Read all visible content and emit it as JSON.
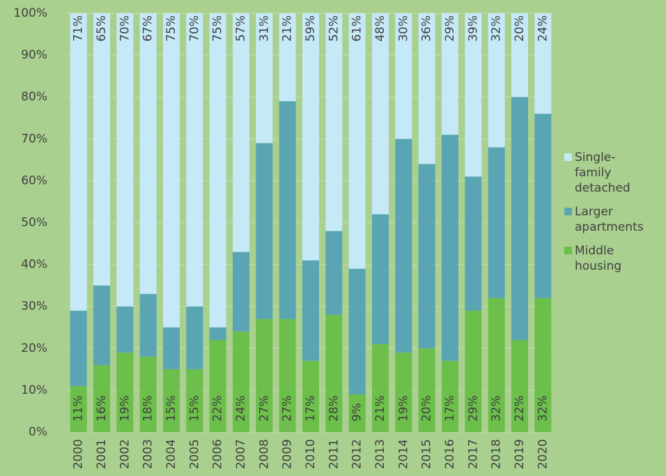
{
  "chart_data": {
    "type": "stacked_bar",
    "categories": [
      "2000",
      "2001",
      "2002",
      "2003",
      "2004",
      "2005",
      "2006",
      "2007",
      "2008",
      "2009",
      "2010",
      "2011",
      "2012",
      "2013",
      "2014",
      "2015",
      "2016",
      "2017",
      "2018",
      "2019",
      "2020"
    ],
    "series": [
      {
        "name": "Middle housing",
        "color": "#6cbf4a",
        "values": [
          11,
          16,
          19,
          18,
          15,
          15,
          22,
          24,
          27,
          27,
          17,
          28,
          9,
          21,
          19,
          20,
          17,
          29,
          32,
          22,
          32
        ],
        "value_labels": [
          "11%",
          "16%",
          "19%",
          "18%",
          "15%",
          "15%",
          "22%",
          "24%",
          "27%",
          "27%",
          "17%",
          "28%",
          "9%",
          "21%",
          "19%",
          "20%",
          "17%",
          "29%",
          "32%",
          "22%",
          "32%"
        ]
      },
      {
        "name": "Larger apartments",
        "color": "#5aa5b3",
        "values": [
          18,
          19,
          11,
          15,
          10,
          15,
          3,
          19,
          42,
          52,
          24,
          20,
          30,
          31,
          51,
          44,
          54,
          32,
          36,
          58,
          44
        ]
      },
      {
        "name": "Single-family detached",
        "color": "#c6e9f8",
        "values": [
          71,
          65,
          70,
          67,
          75,
          70,
          75,
          57,
          31,
          21,
          59,
          52,
          61,
          48,
          30,
          36,
          29,
          39,
          32,
          20,
          24
        ],
        "value_labels": [
          "71%",
          "65%",
          "70%",
          "67%",
          "75%",
          "70%",
          "75%",
          "57%",
          "31%",
          "21%",
          "59%",
          "52%",
          "61%",
          "48%",
          "30%",
          "36%",
          "29%",
          "39%",
          "32%",
          "20%",
          "24%"
        ]
      }
    ],
    "ylim": [
      0,
      100
    ],
    "yticks": [
      {
        "value": 0,
        "label": "0%"
      },
      {
        "value": 10,
        "label": "10%"
      },
      {
        "value": 20,
        "label": "20%"
      },
      {
        "value": 30,
        "label": "30%"
      },
      {
        "value": 40,
        "label": "40%"
      },
      {
        "value": 50,
        "label": "50%"
      },
      {
        "value": 60,
        "label": "60%"
      },
      {
        "value": 70,
        "label": "70%"
      },
      {
        "value": 80,
        "label": "80%"
      },
      {
        "value": 90,
        "label": "90%"
      },
      {
        "value": 100,
        "label": "100%"
      }
    ],
    "grid": true,
    "legend": "right"
  }
}
